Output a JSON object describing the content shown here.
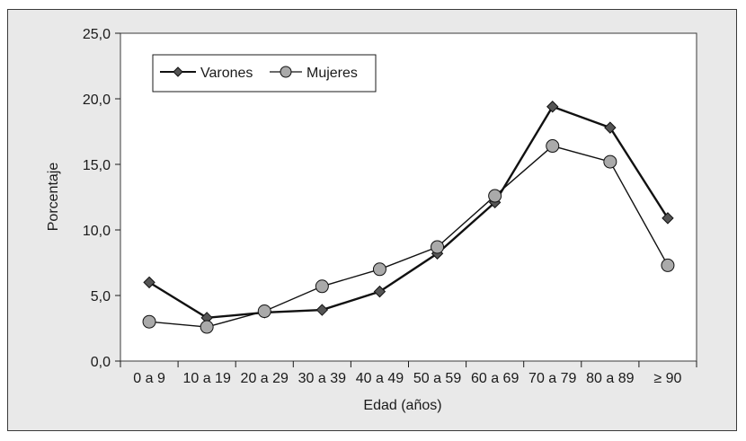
{
  "chart_data": {
    "type": "line",
    "xlabel": "Edad (años)",
    "ylabel": "Porcentaje",
    "categories": [
      "0 a 9",
      "10 a 19",
      "20 a 29",
      "30 a 39",
      "40 a 49",
      "50 a 59",
      "60 a 69",
      "70 a 79",
      "80 a 89",
      "≥ 90"
    ],
    "ylim": [
      0,
      25
    ],
    "yticks": [
      "0,0",
      "5,0",
      "10,0",
      "15,0",
      "20,0",
      "25,0"
    ],
    "grid": false,
    "legend_position": "top-left",
    "series": [
      {
        "name": "Varones",
        "marker": "diamond",
        "color": "#555555",
        "line_color": "#111111",
        "values": [
          6.0,
          3.3,
          3.7,
          3.9,
          5.3,
          8.2,
          12.1,
          19.4,
          17.8,
          10.9
        ]
      },
      {
        "name": "Mujeres",
        "marker": "circle",
        "color": "#aaaaaa",
        "line_color": "#111111",
        "values": [
          3.0,
          2.6,
          3.8,
          5.7,
          7.0,
          8.7,
          12.6,
          16.4,
          15.2,
          7.3
        ]
      }
    ]
  }
}
